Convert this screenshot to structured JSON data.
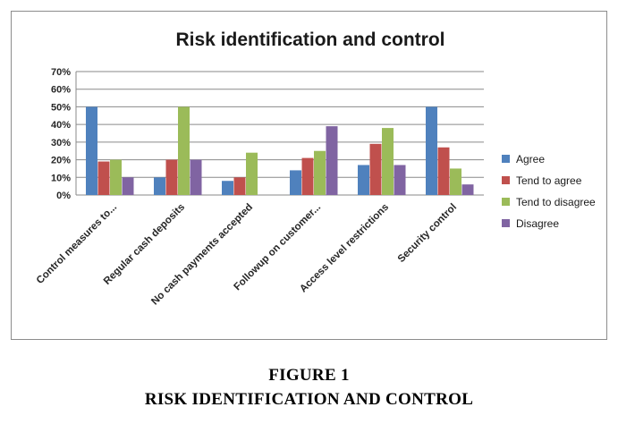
{
  "caption": {
    "label": "FIGURE 1",
    "text": "RISK IDENTIFICATION AND CONTROL"
  },
  "chart_data": {
    "type": "bar",
    "title": "Risk identification and control",
    "categories": [
      "Control measures to...",
      "Regular cash deposits",
      "No cash payments accepted",
      "Followup on customer...",
      "Access level restrictions",
      "Security control"
    ],
    "series": [
      {
        "name": "Agree",
        "color": "#4f81bd",
        "values": [
          50,
          10,
          8,
          14,
          17,
          50
        ]
      },
      {
        "name": "Tend to agree",
        "color": "#c0504d",
        "values": [
          19,
          20,
          10,
          21,
          29,
          27
        ]
      },
      {
        "name": "Tend to disagree",
        "color": "#9bbb59",
        "values": [
          20,
          50,
          24,
          25,
          38,
          15
        ]
      },
      {
        "name": "Disagree",
        "color": "#8064a2",
        "values": [
          10,
          20,
          0,
          39,
          17,
          6
        ]
      }
    ],
    "ylim": [
      0,
      70
    ],
    "yticks": [
      "0%",
      "10%",
      "20%",
      "30%",
      "40%",
      "50%",
      "60%",
      "70%"
    ],
    "grid": true,
    "legend": "right"
  }
}
